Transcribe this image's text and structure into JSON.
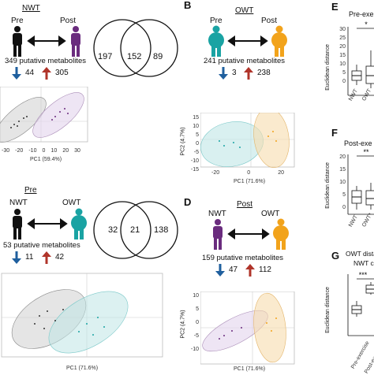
{
  "panelA": {
    "title": "NWT",
    "left_label": "Pre",
    "right_label": "Post",
    "metabolites": "349 putative metabolites",
    "down": "44",
    "up": "305",
    "venn": [
      "197",
      "152",
      "89"
    ],
    "pca": {
      "xlabel": "PC1 (59.4%)",
      "xticks": [
        "-30",
        "-20",
        "-10",
        "0",
        "10",
        "20",
        "30"
      ]
    }
  },
  "panelB": {
    "letter": "B",
    "title": "OWT",
    "left_label": "Pre",
    "right_label": "Post",
    "metabolites": "241 putative metabolites",
    "down": "3",
    "up": "238",
    "pca": {
      "xlabel": "PC1 (71.6%)",
      "ylabel": "PC2 (4.7%)",
      "xticks": [
        "-20",
        "0",
        "20"
      ],
      "yticks": [
        "15",
        "10",
        "5",
        "0",
        "-5",
        "-10",
        "-15"
      ]
    }
  },
  "panelC": {
    "title": "Pre",
    "left_label": "NWT",
    "right_label": "OWT",
    "metabolites": "53 putative metabolites",
    "down": "11",
    "up": "42",
    "venn": [
      "32",
      "21",
      "138"
    ],
    "pca": {
      "xlabel": "PC1 (71.6%)"
    }
  },
  "panelD": {
    "letter": "D",
    "title": "Post",
    "left_label": "NWT",
    "right_label": "OWT",
    "metabolites": "159 putative metabolites",
    "down": "47",
    "up": "112",
    "pca": {
      "xlabel": "PC1 (71.6%)",
      "ylabel": "PC2 (4.7%)",
      "yticks": [
        "10",
        "5",
        "0",
        "-5",
        "-10"
      ]
    }
  },
  "panelE": {
    "letter": "E",
    "title": "Pre-exe",
    "ylabel": "Euclidean distance",
    "yticks": [
      "30",
      "25",
      "20",
      "15",
      "10",
      "5",
      "0"
    ],
    "categories": [
      "NWT",
      "OWT"
    ],
    "sig": "*"
  },
  "panelF": {
    "letter": "F",
    "title": "Post-exe",
    "ylabel": "Euclidean distance",
    "yticks": [
      "20",
      "15",
      "10",
      "5",
      "0"
    ],
    "categories": [
      "NWT",
      "OWT*"
    ],
    "sig": "**"
  },
  "panelG": {
    "letter": "G",
    "title": "OWT distan",
    "subtitle": "NWT cl",
    "ylabel": "Euclidean distance",
    "categories": [
      "Pre-exercise",
      "Post-exercise"
    ],
    "sig": "***"
  },
  "colors": {
    "nwt": "#6a2c7e",
    "owt_pre": "#1aa3a3",
    "owt_post": "#f2a31b",
    "black": "#111111",
    "down_arrow": "#1f5f9e",
    "up_arrow": "#b0342a"
  }
}
